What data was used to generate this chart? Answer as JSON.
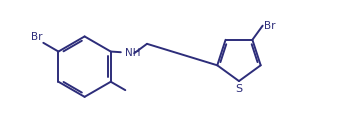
{
  "background_color": "#ffffff",
  "line_color": "#2d2d7a",
  "text_color": "#2d2d7a",
  "bond_lw": 1.4,
  "figsize": [
    3.37,
    1.4
  ],
  "dpi": 100,
  "xlim": [
    0,
    10
  ],
  "ylim": [
    0,
    4
  ]
}
